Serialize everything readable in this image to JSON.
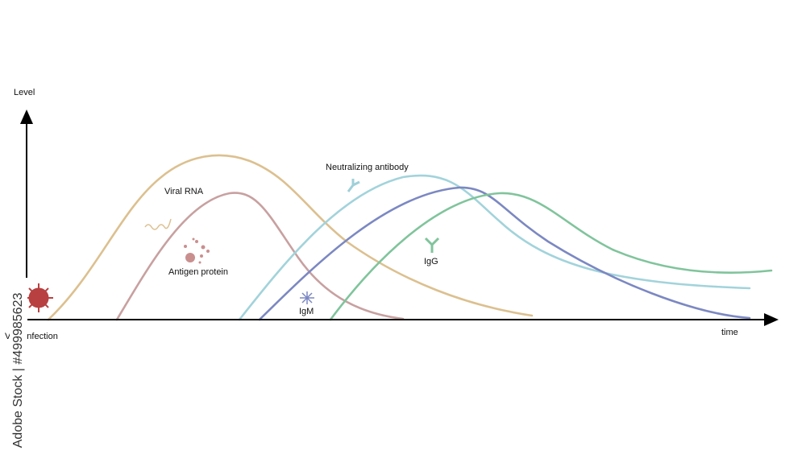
{
  "axes": {
    "y_label": "Level",
    "x_label": "time"
  },
  "labels": {
    "viral_rna": "Viral RNA",
    "antigen_protein": "Antigen protein",
    "neutralizing_antibody": "Neutralizing antibody",
    "igm": "IgM",
    "igg": "IgG",
    "viral_infection": "Viral infection"
  },
  "watermark": "Adobe Stock | #499985623"
}
